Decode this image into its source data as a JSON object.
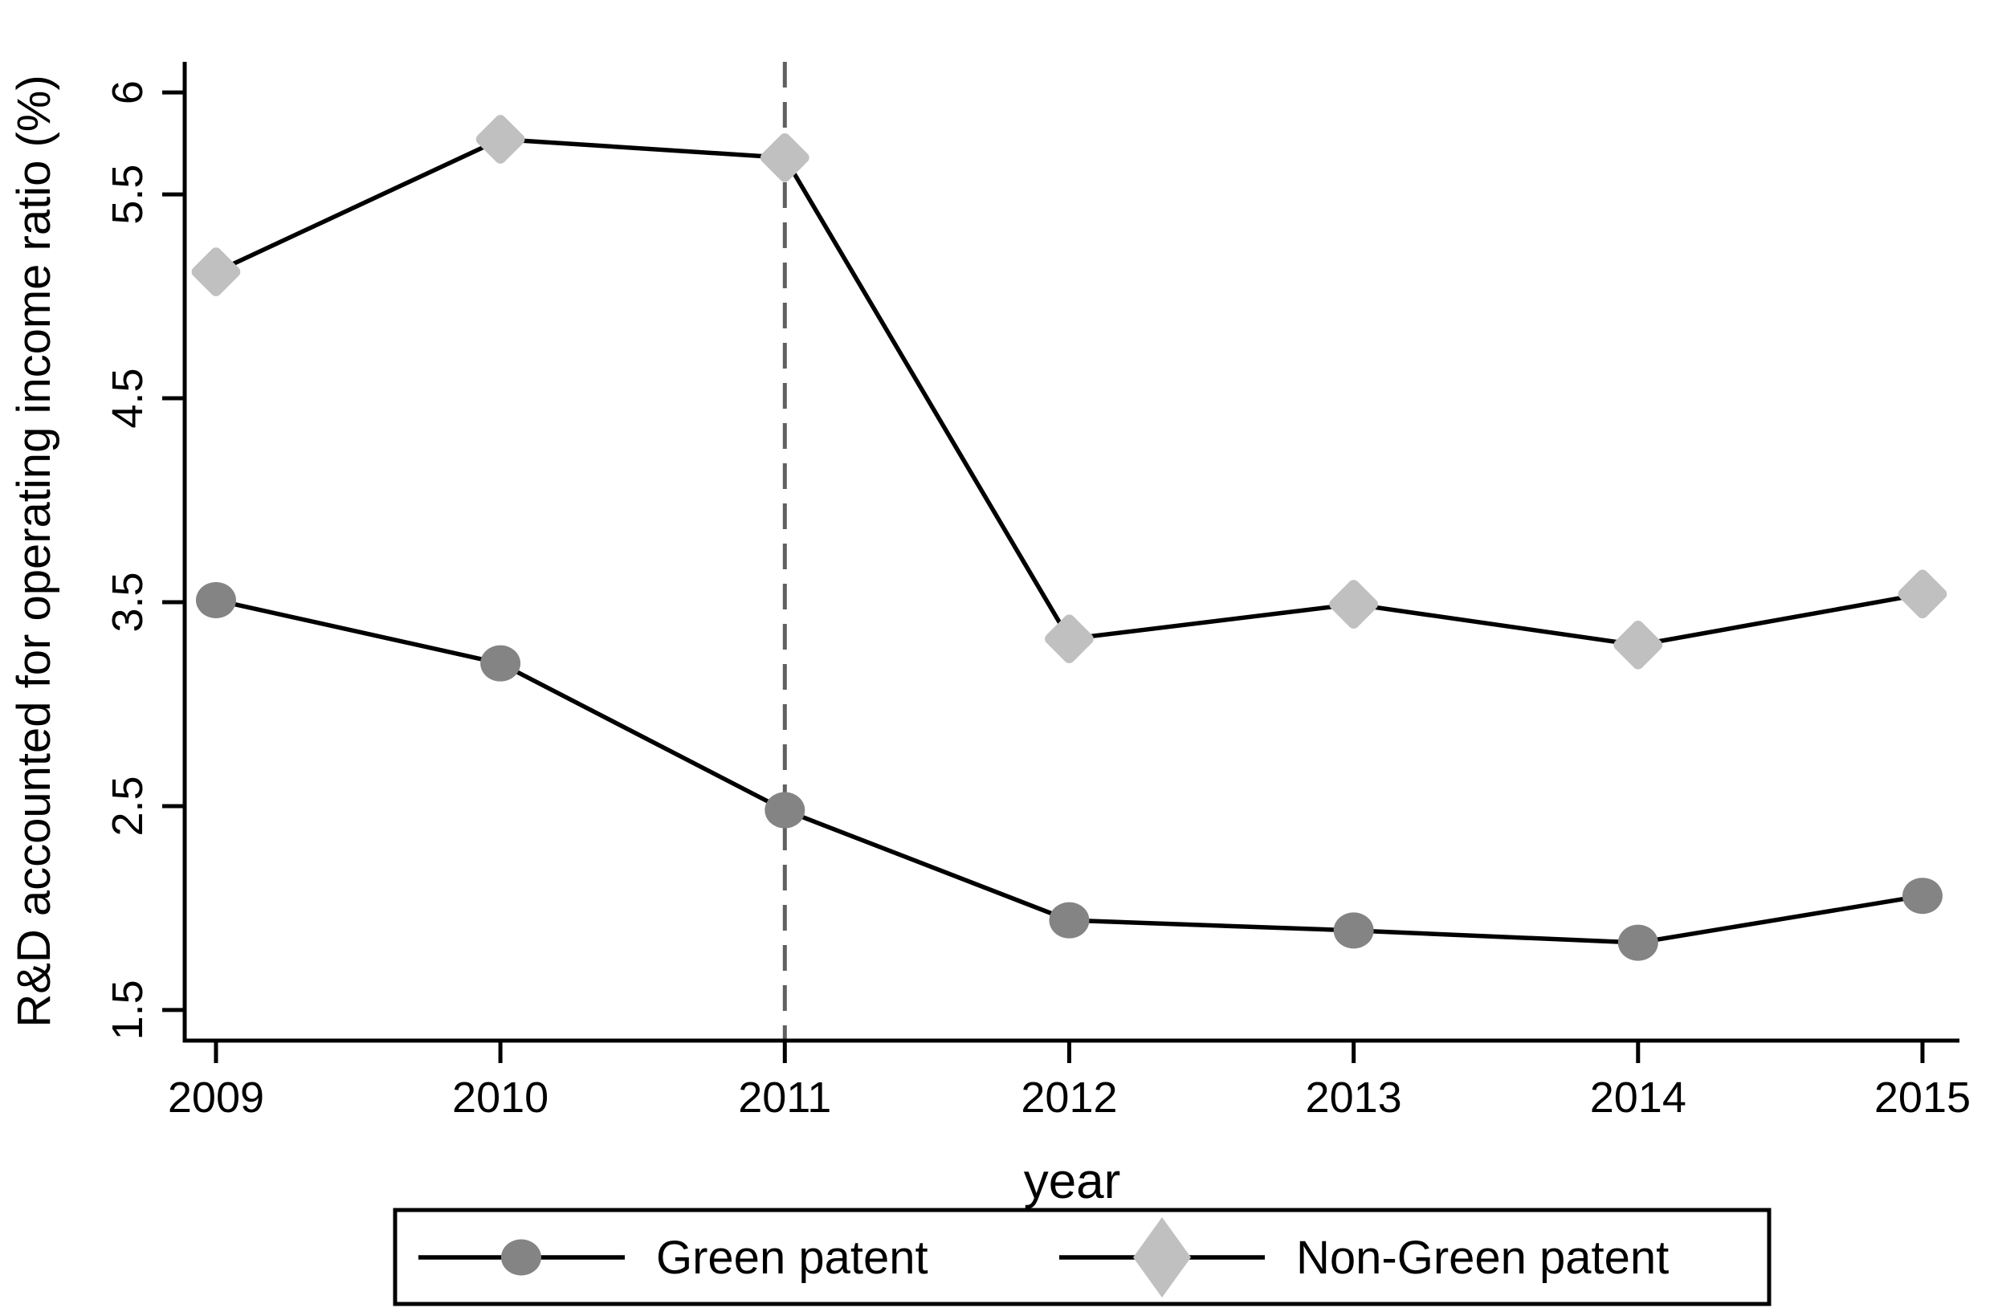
{
  "figure": {
    "background": "#ffffff"
  },
  "chart_data": {
    "type": "line",
    "x": [
      2009,
      2010,
      2011,
      2012,
      2013,
      2014,
      2015
    ],
    "xtick_labels": [
      "2009",
      "2010",
      "2011",
      "2012",
      "2013",
      "2014",
      "2015"
    ],
    "yticks": [
      1.5,
      2.5,
      3.5,
      4.5,
      5.5,
      6
    ],
    "ytick_labels": [
      "1.5",
      "2.5",
      "3.5",
      "4.5",
      "5.5",
      "6"
    ],
    "xlabel": "year",
    "ylabel": "R&D accounted for operating income ratio (%)",
    "xlim": [
      2008.89,
      2015.13
    ],
    "ylim": [
      1.35,
      6.15
    ],
    "grid": false,
    "series": [
      {
        "name": "Green patent",
        "marker": "circle",
        "marker_color": "#848484",
        "line_color": "#000000",
        "values": [
          3.51,
          3.2,
          2.48,
          1.94,
          1.89,
          1.83,
          2.06
        ]
      },
      {
        "name": "Non-Green patent",
        "marker": "diamond",
        "marker_color": "#c0c0c0",
        "line_color": "#000000",
        "values": [
          5.12,
          5.77,
          5.68,
          3.32,
          3.49,
          3.29,
          3.54
        ]
      }
    ],
    "reference_line": {
      "x": 2011,
      "style": "dashed",
      "color": "#606060"
    },
    "legend": {
      "position": "bottom-center",
      "border": true,
      "entries": [
        "Green patent",
        "Non-Green patent"
      ]
    }
  }
}
